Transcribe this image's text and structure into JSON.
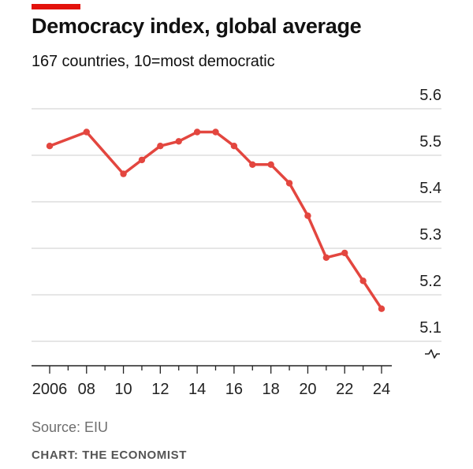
{
  "header": {
    "title": "Democracy index, global average",
    "subtitle": "167 countries, 10=most democratic"
  },
  "footer": {
    "source": "Source: EIU",
    "credit": "CHART: THE ECONOMIST"
  },
  "colors": {
    "accent": "#e3120b",
    "line": "#e3463f",
    "grid": "#d6d6d6",
    "axis": "#222222"
  },
  "chart_data": {
    "type": "line",
    "title": "Democracy index, global average",
    "subtitle": "167 countries, 10=most democratic",
    "xlabel": "",
    "ylabel": "",
    "ylim": [
      5.1,
      5.6
    ],
    "y_axis_broken": true,
    "y_ticks": [
      5.1,
      5.2,
      5.3,
      5.4,
      5.5,
      5.6
    ],
    "y_tick_labels": [
      "5.1",
      "5.2",
      "5.3",
      "5.4",
      "5.5",
      "5.6"
    ],
    "y_axis_position": "right",
    "x_range": [
      2006,
      2024
    ],
    "x_ticks": [
      2006,
      2008,
      2010,
      2012,
      2014,
      2016,
      2018,
      2020,
      2022,
      2024
    ],
    "x_tick_labels": [
      "2006",
      "08",
      "10",
      "12",
      "14",
      "16",
      "18",
      "20",
      "22",
      "24"
    ],
    "grid": true,
    "legend": "none",
    "series": [
      {
        "x": [
          2006,
          2008,
          2010,
          2011,
          2012,
          2013,
          2014,
          2015,
          2016,
          2017,
          2018,
          2019,
          2020,
          2021,
          2022,
          2023,
          2024
        ],
        "values": [
          5.52,
          5.55,
          5.46,
          5.49,
          5.52,
          5.53,
          5.55,
          5.55,
          5.52,
          5.48,
          5.48,
          5.44,
          5.37,
          5.28,
          5.29,
          5.23,
          5.17
        ]
      }
    ]
  }
}
